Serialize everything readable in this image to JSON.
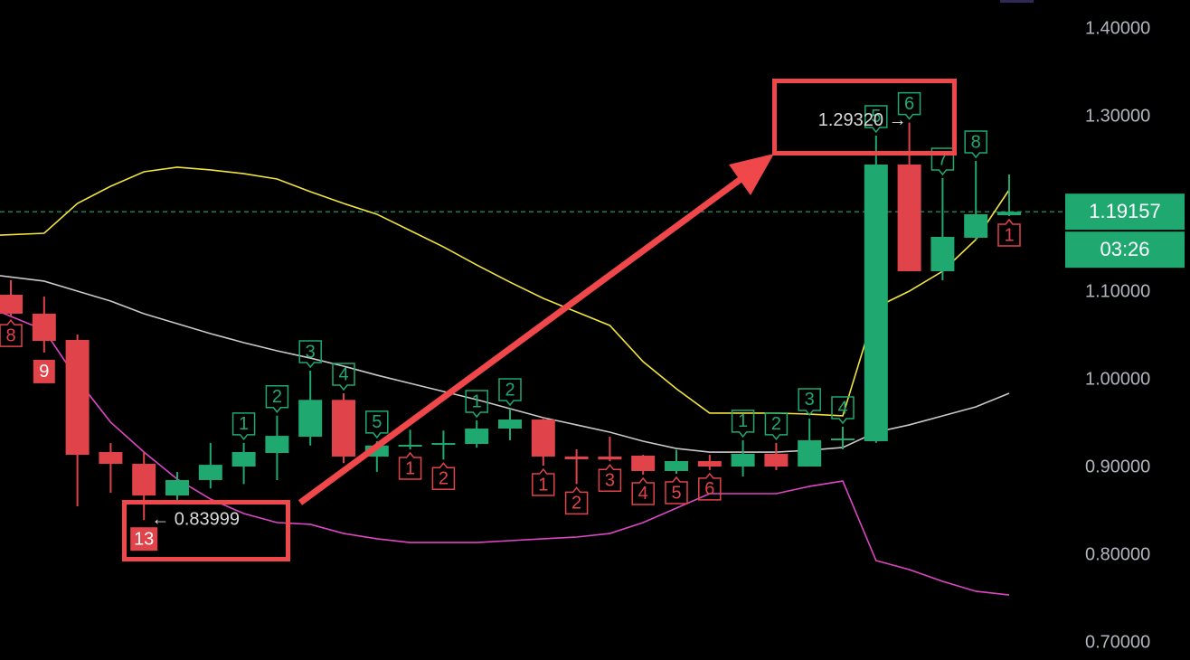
{
  "chart_data": {
    "type": "candlestick",
    "open": [
      1.0969,
      1.0753,
      1.0454,
      0.9175,
      0.9041,
      0.868,
      0.8856,
      0.901,
      0.9165,
      0.935,
      0.977,
      0.9124,
      0.9237,
      0.9258,
      0.9268,
      0.9443,
      0.9546,
      0.9124,
      0.9124,
      0.9134,
      0.8959,
      0.9072,
      0.901,
      0.9155,
      0.901,
      0.931,
      0.9299,
      1.2454,
      1.1237,
      1.1619,
      1.1876
    ],
    "high": [
      1.1134,
      1.0948,
      1.0515,
      0.9278,
      0.9175,
      0.8948,
      0.928,
      0.928,
      0.959,
      1.0103,
      0.9845,
      0.93,
      0.943,
      0.942,
      0.9536,
      0.967,
      0.9567,
      0.9206,
      0.935,
      0.9144,
      0.92,
      0.9144,
      0.931,
      0.928,
      0.9557,
      0.9464,
      1.2784,
      1.2932,
      1.2299,
      1.2495,
      1.234
    ],
    "low": [
      1.072,
      1.031,
      0.8557,
      0.8711,
      0.83999,
      0.8629,
      0.876,
      0.881,
      0.8856,
      0.925,
      0.905,
      0.895,
      0.9206,
      0.909,
      0.9227,
      0.931,
      0.902,
      0.881,
      0.907,
      0.8918,
      0.8928,
      0.897,
      0.8897,
      0.897,
      0.901,
      0.9206,
      0.928,
      1.1237,
      1.1134,
      1.1598,
      1.1866
    ],
    "close": [
      1.0753,
      1.0443,
      0.9144,
      0.9041,
      0.868,
      0.8856,
      0.903,
      0.9175,
      0.936,
      0.977,
      0.9124,
      0.925,
      0.9258,
      0.9278,
      0.9443,
      0.9546,
      0.9124,
      0.9093,
      0.909,
      0.8959,
      0.9072,
      0.901,
      0.9155,
      0.901,
      0.931,
      0.933,
      1.2454,
      1.1237,
      1.1629,
      1.1887,
      1.19157
    ],
    "up_color": "#1fa971",
    "down_color": "#e0434a",
    "ylim": [
      0.6804,
      1.433
    ],
    "yticks": [
      {
        "value": 1.4,
        "label": "1.40000"
      },
      {
        "value": 1.3,
        "label": "1.30000"
      },
      {
        "value": 1.1,
        "label": "1.10000"
      },
      {
        "value": 1.0,
        "label": "1.00000"
      },
      {
        "value": 0.9,
        "label": "0.90000"
      },
      {
        "value": 0.8,
        "label": "0.80000"
      },
      {
        "value": 0.7,
        "label": "0.70000"
      }
    ],
    "grid": true,
    "ma_lines": [
      {
        "color": "#f2e43e",
        "values": [
          1.1649,
          1.167,
          1.201,
          1.2206,
          1.2371,
          1.2423,
          1.2392,
          1.235,
          1.2289,
          1.2144,
          1.201,
          1.1887,
          1.1701,
          1.1515,
          1.1309,
          1.1113,
          1.0928,
          1.0773,
          1.0619,
          1.0206,
          0.9897,
          0.9619,
          0.9619,
          0.9619,
          0.9608,
          0.9588,
          1.0825,
          1.101,
          1.1237,
          1.1598,
          1.2165
        ]
      },
      {
        "color": "#c9c9c9",
        "values": [
          1.1186,
          1.1124,
          1.101,
          1.0897,
          1.0753,
          1.0639,
          1.0526,
          1.0423,
          1.033,
          1.0247,
          1.0155,
          1.0052,
          0.9959,
          0.9866,
          0.9773,
          0.967,
          0.9567,
          0.9485,
          0.9402,
          0.9299,
          0.9216,
          0.9175,
          0.9175,
          0.9175,
          0.9196,
          0.9227,
          0.9402,
          0.9485,
          0.9588,
          0.9691,
          0.9845
        ]
      },
      {
        "color": "#dd46c4",
        "values": [
          1.0773,
          1.0567,
          1.0,
          0.9515,
          0.9175,
          0.8866,
          0.8639,
          0.8474,
          0.8371,
          0.8351,
          0.8247,
          0.8186,
          0.8144,
          0.8144,
          0.8144,
          0.8165,
          0.8186,
          0.8206,
          0.8247,
          0.8371,
          0.8536,
          0.8701,
          0.8701,
          0.8701,
          0.8784,
          0.8845,
          0.7938,
          0.7835,
          0.7701,
          0.7588,
          0.7546
        ]
      }
    ],
    "count_labels": [
      "8",
      "9",
      null,
      null,
      "13",
      null,
      null,
      "1",
      "2",
      "3",
      "4",
      "5",
      "1",
      "2",
      "1",
      "2",
      "1",
      "2",
      "3",
      "4",
      "5",
      "6",
      "1",
      "2",
      "3",
      "4",
      "5",
      "6",
      "7",
      "8",
      "1"
    ],
    "count_label_kinds": [
      "below",
      "below-filled",
      null,
      null,
      "below-filled",
      null,
      null,
      "above",
      "above",
      "above",
      "above",
      "above",
      "below",
      "below",
      "above",
      "above",
      "below",
      "below",
      "below",
      "below",
      "below",
      "below",
      "above",
      "above",
      "above",
      "above",
      "above",
      "above",
      "above",
      "above",
      "below"
    ],
    "low_marker": "← 0.83999",
    "high_marker": "1.29320 →",
    "last_price": 1.19157,
    "countdown": "03:26"
  }
}
